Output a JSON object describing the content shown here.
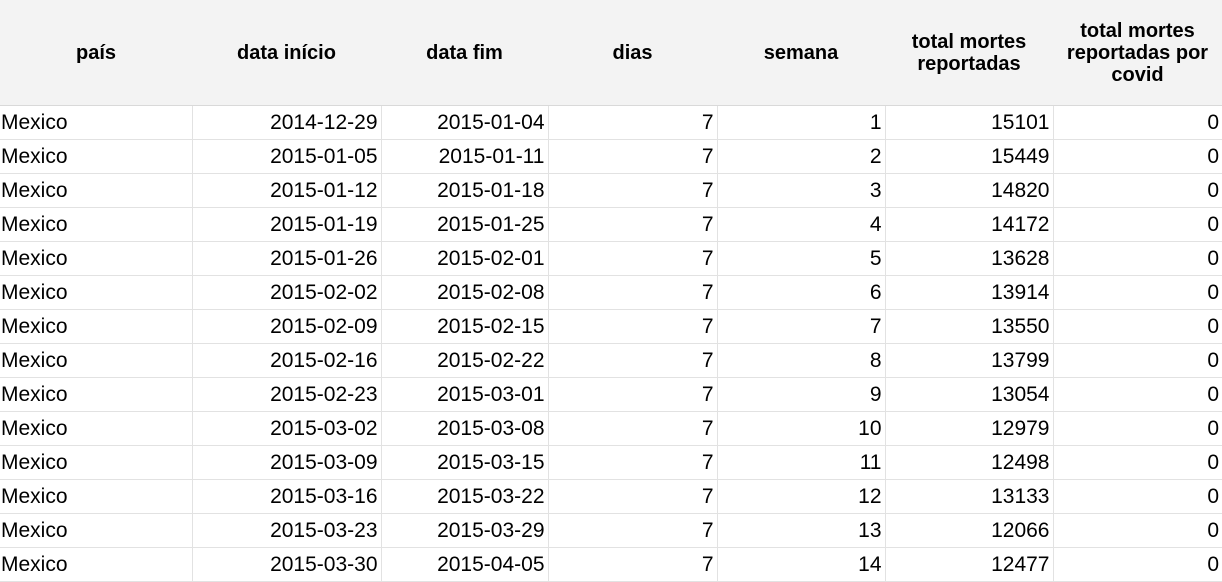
{
  "table": {
    "headers": [
      "país",
      "data início",
      "data fim",
      "dias",
      "semana",
      "total mortes reportadas",
      "total mortes reportadas por covid"
    ],
    "rows": [
      [
        "Mexico",
        "2014-12-29",
        "2015-01-04",
        "7",
        "1",
        "15101",
        "0"
      ],
      [
        "Mexico",
        "2015-01-05",
        "2015-01-11",
        "7",
        "2",
        "15449",
        "0"
      ],
      [
        "Mexico",
        "2015-01-12",
        "2015-01-18",
        "7",
        "3",
        "14820",
        "0"
      ],
      [
        "Mexico",
        "2015-01-19",
        "2015-01-25",
        "7",
        "4",
        "14172",
        "0"
      ],
      [
        "Mexico",
        "2015-01-26",
        "2015-02-01",
        "7",
        "5",
        "13628",
        "0"
      ],
      [
        "Mexico",
        "2015-02-02",
        "2015-02-08",
        "7",
        "6",
        "13914",
        "0"
      ],
      [
        "Mexico",
        "2015-02-09",
        "2015-02-15",
        "7",
        "7",
        "13550",
        "0"
      ],
      [
        "Mexico",
        "2015-02-16",
        "2015-02-22",
        "7",
        "8",
        "13799",
        "0"
      ],
      [
        "Mexico",
        "2015-02-23",
        "2015-03-01",
        "7",
        "9",
        "13054",
        "0"
      ],
      [
        "Mexico",
        "2015-03-02",
        "2015-03-08",
        "7",
        "10",
        "12979",
        "0"
      ],
      [
        "Mexico",
        "2015-03-09",
        "2015-03-15",
        "7",
        "11",
        "12498",
        "0"
      ],
      [
        "Mexico",
        "2015-03-16",
        "2015-03-22",
        "7",
        "12",
        "13133",
        "0"
      ],
      [
        "Mexico",
        "2015-03-23",
        "2015-03-29",
        "7",
        "13",
        "12066",
        "0"
      ],
      [
        "Mexico",
        "2015-03-30",
        "2015-04-05",
        "7",
        "14",
        "12477",
        "0"
      ]
    ]
  }
}
